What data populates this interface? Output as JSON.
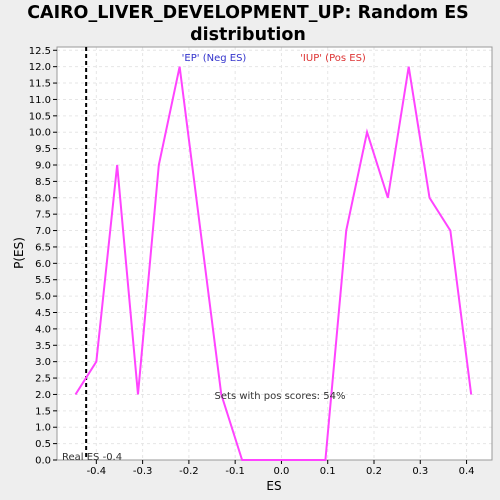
{
  "chart_data": {
    "type": "line",
    "title_lines": [
      "CAIRO_LIVER_DEVELOPMENT_UP: Random ES",
      "distribution"
    ],
    "xlabel": "ES",
    "ylabel": "P(ES)",
    "xlim": [
      -0.485,
      0.455
    ],
    "ylim": [
      0,
      12.6
    ],
    "xticks": [
      -0.4,
      -0.3,
      -0.2,
      -0.1,
      0.0,
      0.1,
      0.2,
      0.3,
      0.4
    ],
    "xtick_labels": [
      "-0.4",
      "-0.3",
      "-0.2",
      "-0.1",
      "0.0",
      "0.1",
      "0.2",
      "0.3",
      "0.4"
    ],
    "yticks": [
      0,
      0.5,
      1,
      1.5,
      2,
      2.5,
      3,
      3.5,
      4,
      4.5,
      5,
      5.5,
      6,
      6.5,
      7,
      7.5,
      8,
      8.5,
      9,
      9.5,
      10,
      10.5,
      11,
      11.5,
      12,
      12.5
    ],
    "ytick_labels": [
      "0.0",
      "0.5",
      "1.0",
      "1.5",
      "2.0",
      "2.5",
      "3.0",
      "3.5",
      "4.0",
      "4.5",
      "5.0",
      "5.5",
      "6.0",
      "6.5",
      "7.0",
      "7.5",
      "8.0",
      "8.5",
      "9.0",
      "9.5",
      "10.0",
      "10.5",
      "11.0",
      "11.5",
      "12.0",
      "12.5"
    ],
    "grid": true,
    "series": [
      {
        "color": "#ff44ff",
        "x": [
          -0.445,
          -0.4,
          -0.355,
          -0.31,
          -0.265,
          -0.22,
          -0.175,
          -0.13,
          -0.085,
          -0.04,
          0.005,
          0.05,
          0.095,
          0.14,
          0.185,
          0.23,
          0.275,
          0.32,
          0.365,
          0.41
        ],
        "y": [
          2,
          3,
          9,
          2,
          9,
          12,
          7,
          2,
          0,
          0,
          0,
          0,
          0,
          7,
          10,
          8,
          12,
          8,
          7,
          2
        ]
      }
    ],
    "real_es": {
      "x": -0.422,
      "label": "Real ES -0.4",
      "color": "#000000"
    },
    "annotations": {
      "neg_label": "'EP' (Neg ES)",
      "neg_color": "#3333cc",
      "pos_label": "'IUP' (Pos ES)",
      "pos_color": "#dd3333",
      "pos_pct": "Sets with pos scores: 54%"
    }
  }
}
